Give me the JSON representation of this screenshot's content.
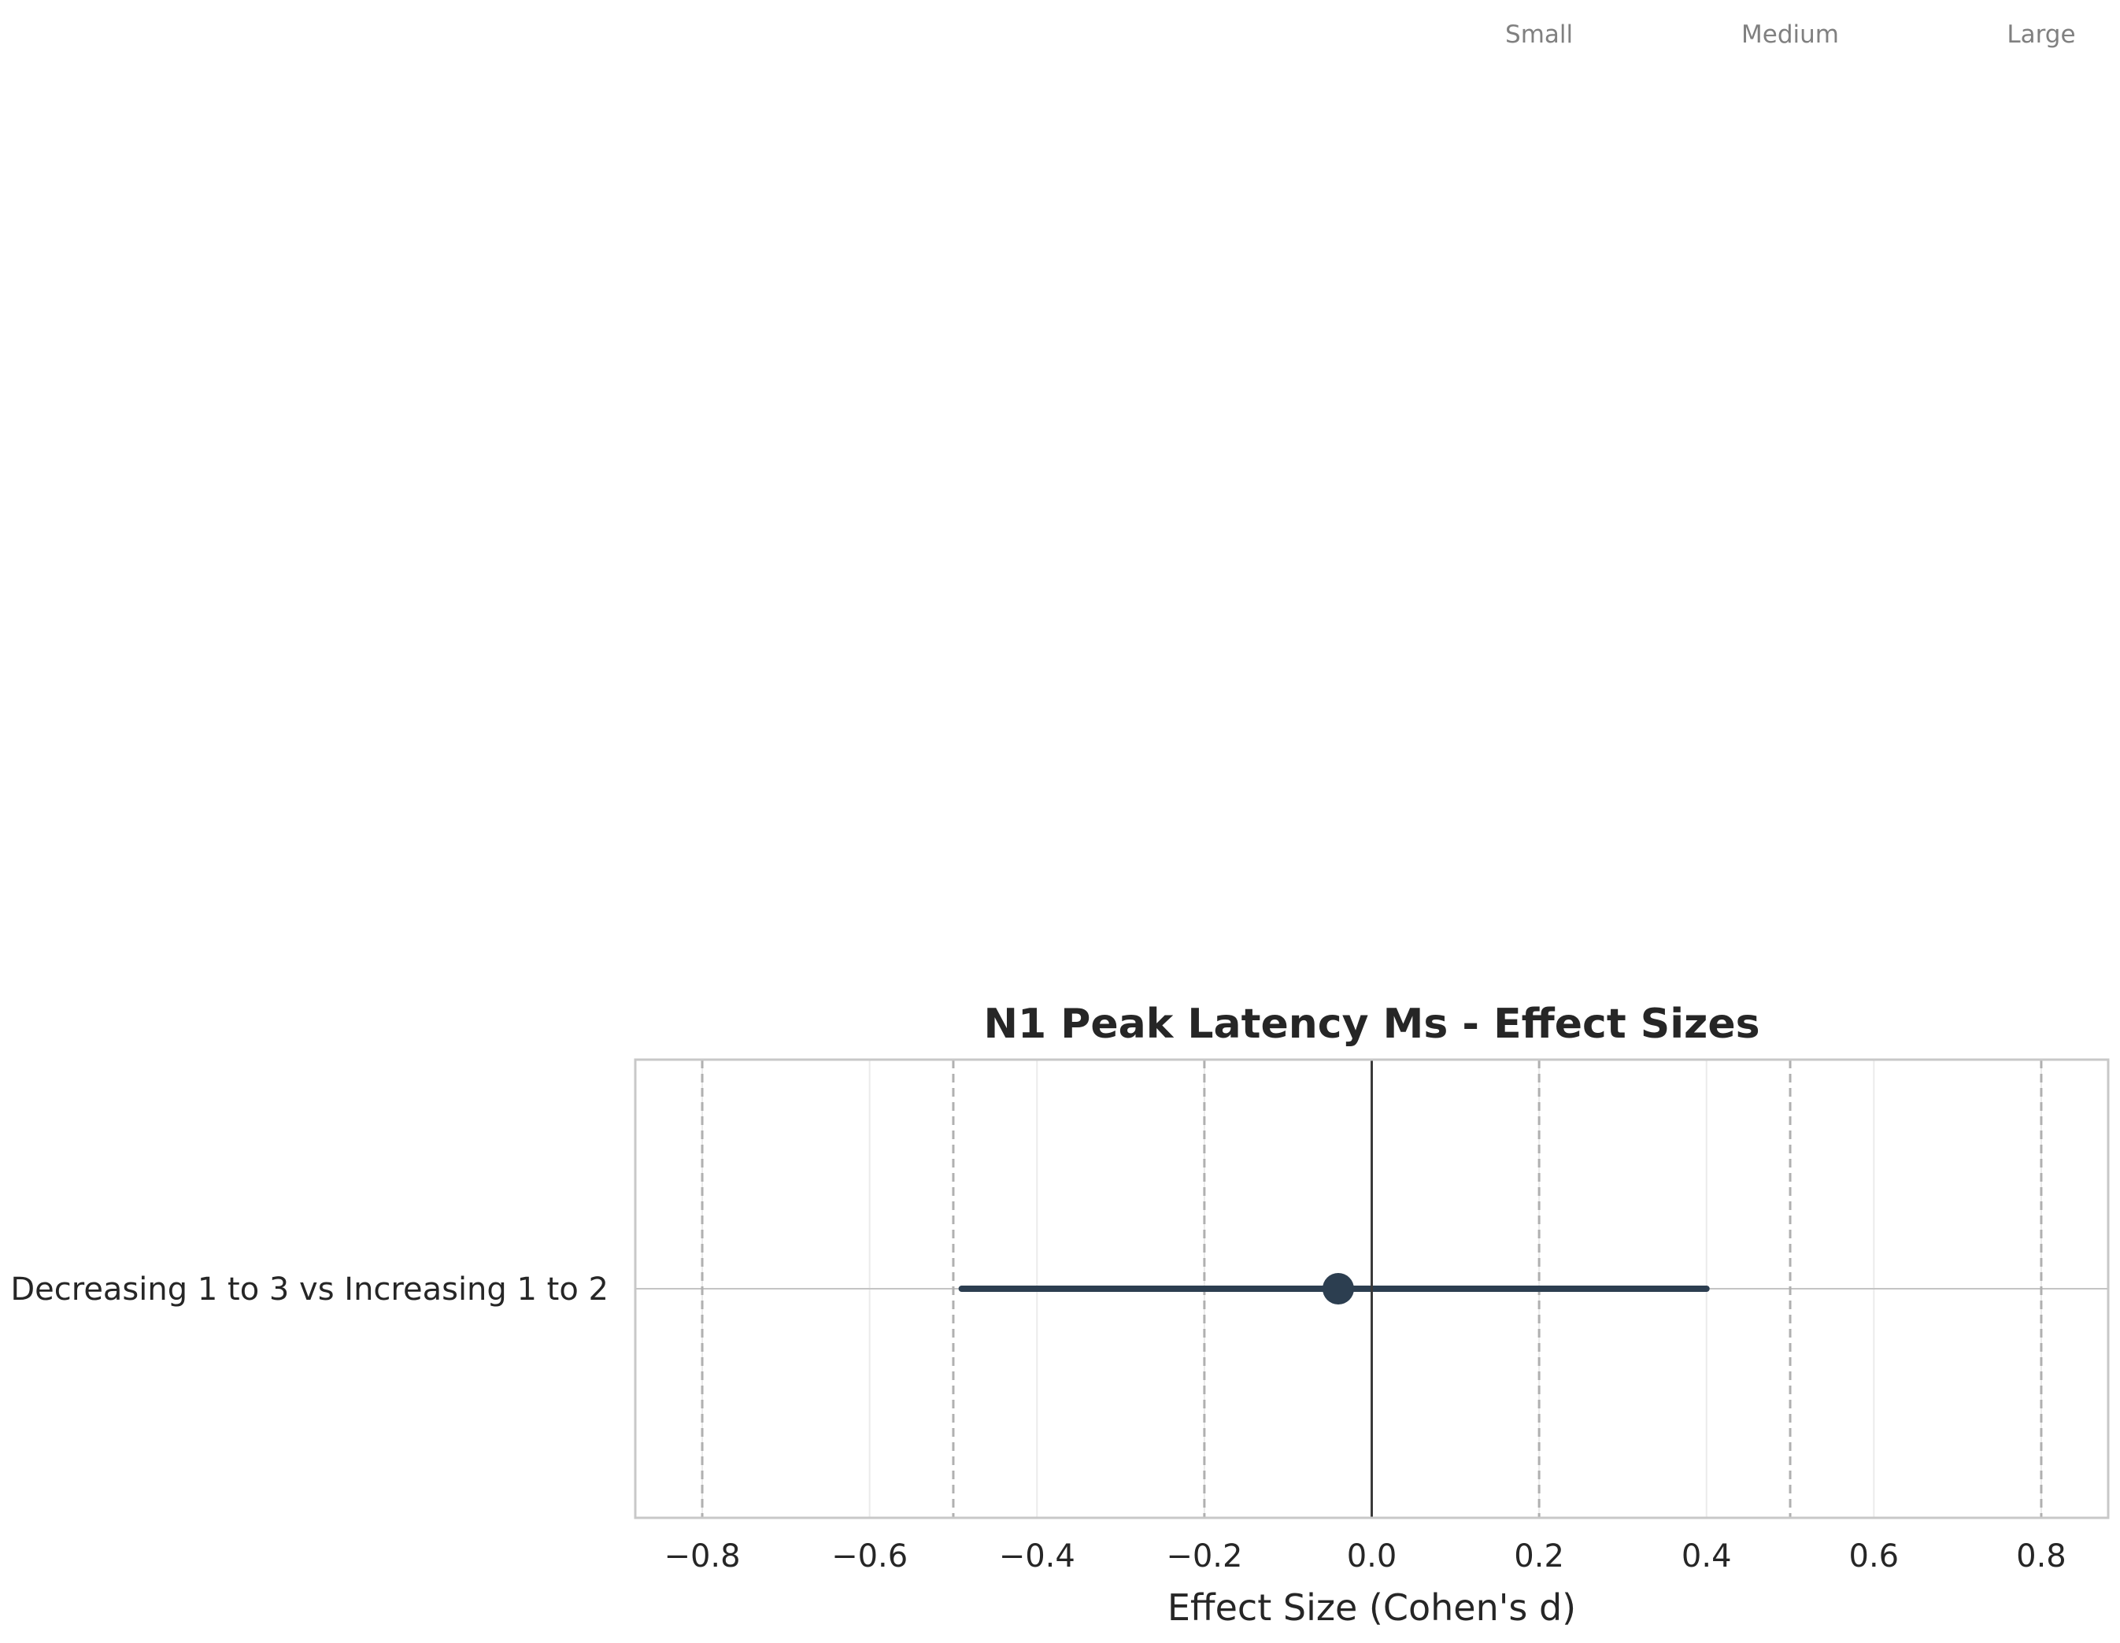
{
  "chart_data": {
    "type": "forest",
    "title": "N1 Peak Latency Ms - Effect Sizes",
    "xlabel": "Effect Size (Cohen's d)",
    "ylabel": "",
    "xlim": [
      -0.88,
      0.88
    ],
    "xticks": [
      -0.8,
      -0.6,
      -0.4,
      -0.2,
      0.0,
      0.2,
      0.4,
      0.6,
      0.8
    ],
    "xtick_labels": [
      "−0.8",
      "−0.6",
      "−0.4",
      "−0.2",
      "0.0",
      "0.2",
      "0.4",
      "0.6",
      "0.8"
    ],
    "grid": true,
    "reference_line": 0,
    "thresholds": [
      -0.8,
      -0.5,
      -0.2,
      0.2,
      0.5,
      0.8
    ],
    "threshold_labels": [
      {
        "x": 0.2,
        "label": "Small"
      },
      {
        "x": 0.5,
        "label": "Medium"
      },
      {
        "x": 0.8,
        "label": "Large"
      }
    ],
    "comparisons": [
      {
        "label": "Decreasing 1 to 3 vs Increasing 1 to 2",
        "d": -0.04,
        "ci_lower": -0.49,
        "ci_upper": 0.4
      }
    ],
    "colors": {
      "point": "#2c3e50",
      "ci": "#2c3e50",
      "zero_line": "#3a3a3a",
      "threshold": "#b0b0b0",
      "grid": "#ebebeb",
      "frame": "#c8c8c8"
    }
  }
}
